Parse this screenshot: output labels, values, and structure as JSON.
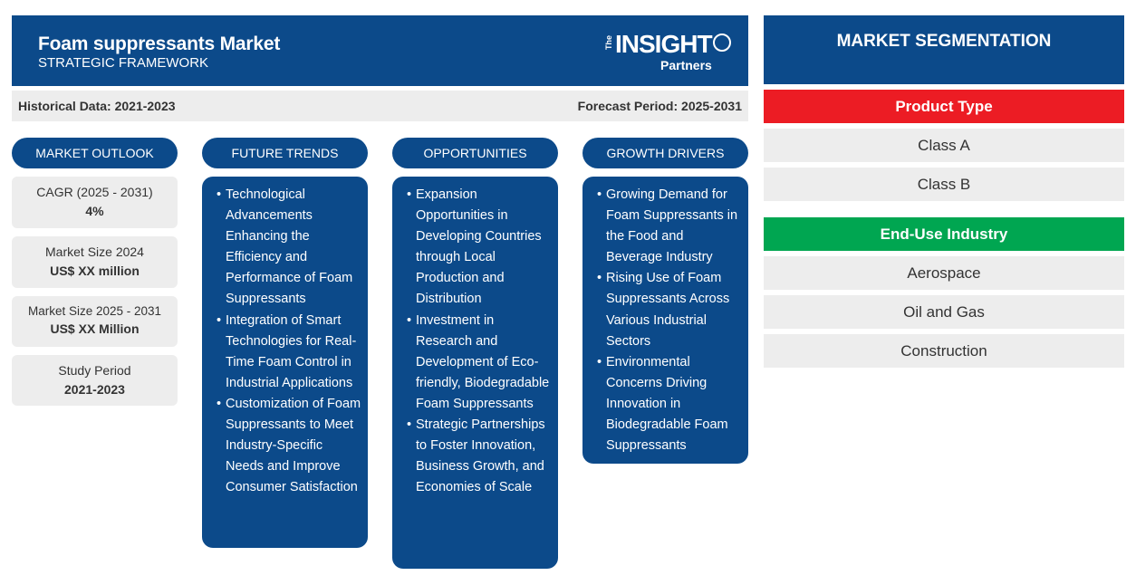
{
  "header": {
    "title": "Foam suppressants Market",
    "subtitle": "STRATEGIC FRAMEWORK",
    "logo_the": "The",
    "logo_insight": "INSIGHT",
    "logo_partners": "Partners"
  },
  "period": {
    "historical": "Historical Data: 2021-2023",
    "forecast": "Forecast Period: 2025-2031"
  },
  "columns": {
    "outlook": "MARKET OUTLOOK",
    "trends": "FUTURE TRENDS",
    "opportunities": "OPPORTUNITIES",
    "drivers": "GROWTH DRIVERS"
  },
  "outlook": [
    {
      "label": "CAGR (2025 - 2031)",
      "value": "4%"
    },
    {
      "label": "Market Size 2024",
      "value": "US$ XX million"
    },
    {
      "label": "Market Size 2025 - 2031",
      "value": "US$ XX Million"
    },
    {
      "label": "Study Period",
      "value": "2021-2023"
    }
  ],
  "trends": [
    "Technological Advancements Enhancing the Efficiency and Performance of Foam Suppressants",
    "Integration of Smart Technologies for Real-Time Foam Control in Industrial Applications",
    "Customization of Foam Suppressants to Meet Industry-Specific Needs and Improve Consumer Satisfaction"
  ],
  "opportunities": [
    "Expansion Opportunities in Developing Countries through Local Production and Distribution",
    "Investment in Research and Development of Eco-friendly, Biodegradable Foam Suppressants",
    "Strategic Partnerships to Foster Innovation, Business Growth, and Economies of Scale"
  ],
  "drivers": [
    "Growing Demand for Foam Suppressants in the Food and Beverage Industry",
    "Rising Use of Foam Suppressants Across Various Industrial Sectors",
    "Environmental Concerns Driving Innovation in Biodegradable Foam Suppressants"
  ],
  "segmentation": {
    "title": "MARKET SEGMENTATION",
    "categories": [
      {
        "name": "Product Type",
        "color": "#ec1c24",
        "items": [
          "Class A",
          "Class B"
        ]
      },
      {
        "name": "End-Use Industry",
        "color": "#00a651",
        "items": [
          "Aerospace",
          "Oil and Gas",
          "Construction"
        ]
      }
    ]
  },
  "colors": {
    "navy": "#0c4a8a",
    "grey": "#ededed"
  }
}
